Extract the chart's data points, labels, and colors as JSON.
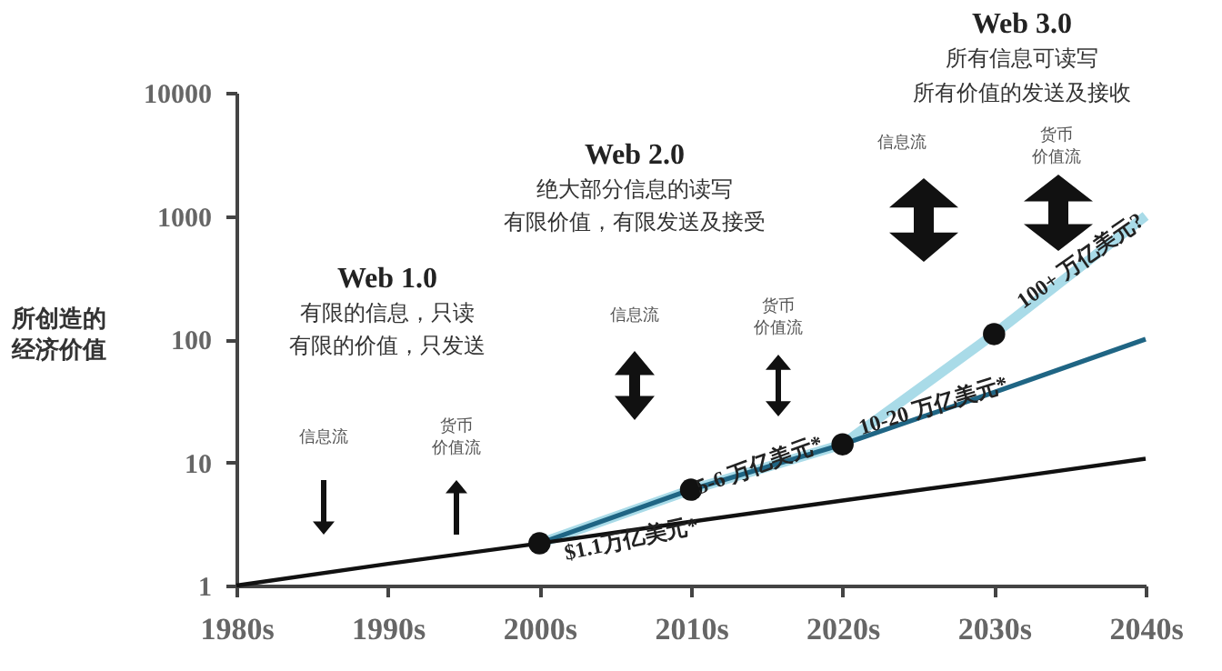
{
  "chart_data": {
    "type": "line",
    "ylabel": "所创造的经济价值",
    "categories": [
      "1980s",
      "1990s",
      "2000s",
      "2010s",
      "2020s",
      "2030s",
      "2040s"
    ],
    "series": [
      {
        "color": "#a9dbe8",
        "values": [
          null,
          null,
          2.2,
          6,
          14,
          110,
          1000
        ]
      },
      {
        "color": "#1f6584",
        "values": [
          null,
          null,
          2.2,
          6,
          14,
          37,
          100
        ]
      },
      {
        "color": "#111111",
        "values": [
          1,
          1.5,
          2.2,
          3.3,
          4.9,
          7.2,
          10.7
        ]
      },
      {
        "type": "scatter",
        "color": "#111111",
        "marker": "circle",
        "values": [
          null,
          null,
          2.2,
          6,
          14,
          110,
          null
        ]
      }
    ],
    "log": "y",
    "ylim": [
      1,
      10000
    ],
    "yticks": [
      1,
      10,
      100,
      1000,
      10000
    ],
    "grid": false,
    "marker": "none",
    "annotations": [
      "Web 1.0",
      "有限的信息，只读",
      "有限的价值，只发送",
      "信息流",
      "货币",
      "价值流",
      "Web 2.0",
      "绝大部分信息的读写",
      "有限价值，有限发送及接受",
      "信息流",
      "货币",
      "价值流",
      "Web 3.0",
      "所有信息可读写",
      "所有价值的发送及接收",
      "信息流",
      "货币",
      "价值流",
      {
        "text": "$1.1万亿美元*",
        "x": "2000s",
        "y": 2.2
      },
      {
        "text": "5-6 万亿美元*",
        "x": "2010s",
        "y": 6
      },
      {
        "text": "10-20 万亿美元*",
        "x": "2020s",
        "y": 14
      },
      {
        "text": "100+ 万亿美元?",
        "x": "2030s",
        "y": 110
      }
    ]
  }
}
